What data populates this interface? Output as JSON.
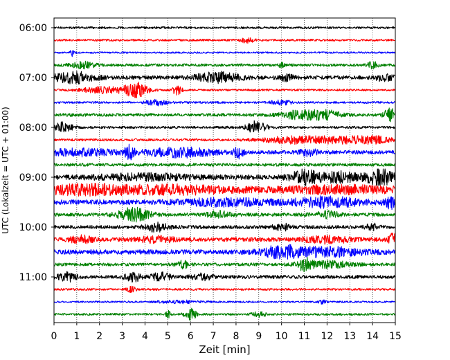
{
  "chart_data": {
    "type": "line",
    "title": "",
    "xlabel": "Zeit  [min]",
    "ylabel": "UTC (Lokalzeit = UTC + 01:00)",
    "xlim": [
      0,
      15
    ],
    "x_ticks": [
      0,
      1,
      2,
      3,
      4,
      5,
      6,
      7,
      8,
      9,
      10,
      11,
      12,
      13,
      14,
      15
    ],
    "x_tick_labels": [
      "0",
      "1",
      "2",
      "3",
      "4",
      "5",
      "6",
      "7",
      "8",
      "9",
      "10",
      "11",
      "12",
      "13",
      "14",
      "15"
    ],
    "y_tick_labels": [
      "06:00",
      "07:00",
      "08:00",
      "09:00",
      "10:00",
      "11:00"
    ],
    "y_tick_rows": [
      0,
      4,
      8,
      12,
      16,
      20
    ],
    "grid": {
      "x": "dotted",
      "y": "none"
    },
    "trace_colors": [
      "#000000",
      "#ff0000",
      "#0000ff",
      "#008000"
    ],
    "series": [
      {
        "start": "06:00",
        "color": "#000000",
        "amplitude": 0.12,
        "bursts": []
      },
      {
        "start": "06:15",
        "color": "#ff0000",
        "amplitude": 0.12,
        "bursts": [
          {
            "t": 8.5,
            "a": 0.3,
            "w": 0.3
          }
        ]
      },
      {
        "start": "06:30",
        "color": "#0000ff",
        "amplitude": 0.1,
        "bursts": [
          {
            "t": 0.8,
            "a": 0.5,
            "w": 0.1
          }
        ]
      },
      {
        "start": "06:45",
        "color": "#008000",
        "amplitude": 0.16,
        "bursts": [
          {
            "t": 1.3,
            "a": 0.35,
            "w": 0.5
          },
          {
            "t": 10.0,
            "a": 0.4,
            "w": 0.1
          },
          {
            "t": 14.0,
            "a": 0.4,
            "w": 0.2
          }
        ]
      },
      {
        "start": "07:00",
        "color": "#000000",
        "amplitude": 0.22,
        "bursts": [
          {
            "t": 0.9,
            "a": 0.6,
            "w": 0.9
          },
          {
            "t": 7.2,
            "a": 0.55,
            "w": 1.0
          },
          {
            "t": 10.2,
            "a": 0.35,
            "w": 0.3
          },
          {
            "t": 14.5,
            "a": 0.35,
            "w": 0.4
          }
        ]
      },
      {
        "start": "07:15",
        "color": "#ff0000",
        "amplitude": 0.12,
        "bursts": [
          {
            "t": 2.2,
            "a": 0.35,
            "w": 1.0
          },
          {
            "t": 3.6,
            "a": 0.9,
            "w": 0.5
          },
          {
            "t": 5.4,
            "a": 0.6,
            "w": 0.2
          }
        ]
      },
      {
        "start": "07:30",
        "color": "#0000ff",
        "amplitude": 0.12,
        "bursts": [
          {
            "t": 4.5,
            "a": 0.3,
            "w": 0.5
          },
          {
            "t": 10.0,
            "a": 0.25,
            "w": 0.5
          }
        ]
      },
      {
        "start": "07:45",
        "color": "#008000",
        "amplitude": 0.18,
        "bursts": [
          {
            "t": 10.8,
            "a": 0.5,
            "w": 0.8
          },
          {
            "t": 12.0,
            "a": 0.5,
            "w": 0.6
          },
          {
            "t": 14.8,
            "a": 0.7,
            "w": 0.3
          }
        ]
      },
      {
        "start": "08:00",
        "color": "#000000",
        "amplitude": 0.14,
        "bursts": [
          {
            "t": 0.4,
            "a": 0.55,
            "w": 0.4
          },
          {
            "t": 8.9,
            "a": 0.7,
            "w": 0.45
          }
        ]
      },
      {
        "start": "08:15",
        "color": "#ff0000",
        "amplitude": 0.14,
        "bursts": [
          {
            "t": 10.5,
            "a": 0.4,
            "w": 1.3
          },
          {
            "t": 12.5,
            "a": 0.35,
            "w": 1.0
          },
          {
            "t": 14.0,
            "a": 0.4,
            "w": 0.8
          }
        ]
      },
      {
        "start": "08:30",
        "color": "#0000ff",
        "amplitude": 0.22,
        "bursts": [
          {
            "t": 1.2,
            "a": 0.35,
            "w": 1.5
          },
          {
            "t": 3.3,
            "a": 0.7,
            "w": 0.2
          },
          {
            "t": 5.5,
            "a": 0.5,
            "w": 1.5
          },
          {
            "t": 8.1,
            "a": 0.7,
            "w": 0.2
          },
          {
            "t": 11.2,
            "a": 0.35,
            "w": 0.4
          }
        ]
      },
      {
        "start": "08:45",
        "color": "#008000",
        "amplitude": 0.18,
        "bursts": []
      },
      {
        "start": "09:00",
        "color": "#000000",
        "amplitude": 0.28,
        "bursts": [
          {
            "t": 4.0,
            "a": 0.3,
            "w": 2.0
          },
          {
            "t": 11.0,
            "a": 0.8,
            "w": 0.6
          },
          {
            "t": 12.5,
            "a": 0.55,
            "w": 0.8
          },
          {
            "t": 14.3,
            "a": 0.9,
            "w": 0.6
          }
        ]
      },
      {
        "start": "09:15",
        "color": "#ff0000",
        "amplitude": 0.4,
        "bursts": [
          {
            "t": 1.5,
            "a": 0.45,
            "w": 2.0
          },
          {
            "t": 5.5,
            "a": 0.3,
            "w": 2.0
          },
          {
            "t": 12.5,
            "a": 0.3,
            "w": 2.0
          }
        ]
      },
      {
        "start": "09:30",
        "color": "#0000ff",
        "amplitude": 0.28,
        "bursts": [
          {
            "t": 7.5,
            "a": 0.35,
            "w": 2.0
          },
          {
            "t": 12.0,
            "a": 0.5,
            "w": 1.5
          },
          {
            "t": 14.8,
            "a": 0.6,
            "w": 0.3
          }
        ]
      },
      {
        "start": "09:45",
        "color": "#008000",
        "amplitude": 0.2,
        "bursts": [
          {
            "t": 3.5,
            "a": 0.75,
            "w": 0.7
          },
          {
            "t": 7.2,
            "a": 0.35,
            "w": 0.5
          },
          {
            "t": 12.0,
            "a": 0.3,
            "w": 0.6
          }
        ]
      },
      {
        "start": "10:00",
        "color": "#000000",
        "amplitude": 0.2,
        "bursts": [
          {
            "t": 4.5,
            "a": 0.45,
            "w": 0.5
          },
          {
            "t": 10.0,
            "a": 0.35,
            "w": 0.4
          },
          {
            "t": 14.0,
            "a": 0.4,
            "w": 0.3
          }
        ]
      },
      {
        "start": "10:15",
        "color": "#ff0000",
        "amplitude": 0.24,
        "bursts": [
          {
            "t": 1.2,
            "a": 0.35,
            "w": 0.5
          },
          {
            "t": 4.5,
            "a": 0.3,
            "w": 0.8
          },
          {
            "t": 12.0,
            "a": 0.35,
            "w": 1.0
          },
          {
            "t": 14.9,
            "a": 0.6,
            "w": 0.2
          }
        ]
      },
      {
        "start": "10:30",
        "color": "#0000ff",
        "amplitude": 0.28,
        "bursts": [
          {
            "t": 10.0,
            "a": 0.65,
            "w": 0.8
          },
          {
            "t": 12.0,
            "a": 0.45,
            "w": 1.5
          }
        ]
      },
      {
        "start": "10:45",
        "color": "#008000",
        "amplitude": 0.18,
        "bursts": [
          {
            "t": 5.7,
            "a": 0.4,
            "w": 0.3
          },
          {
            "t": 11.0,
            "a": 0.7,
            "w": 0.3
          },
          {
            "t": 12.0,
            "a": 0.4,
            "w": 1.0
          }
        ]
      },
      {
        "start": "11:00",
        "color": "#000000",
        "amplitude": 0.2,
        "bursts": [
          {
            "t": 0.6,
            "a": 0.5,
            "w": 0.4
          },
          {
            "t": 3.5,
            "a": 0.45,
            "w": 0.4
          },
          {
            "t": 4.7,
            "a": 0.45,
            "w": 0.4
          },
          {
            "t": 6.5,
            "a": 0.3,
            "w": 0.5
          }
        ]
      },
      {
        "start": "11:15",
        "color": "#ff0000",
        "amplitude": 0.12,
        "bursts": [
          {
            "t": 3.4,
            "a": 0.3,
            "w": 0.2
          }
        ]
      },
      {
        "start": "11:30",
        "color": "#0000ff",
        "amplitude": 0.1,
        "bursts": [
          {
            "t": 5.5,
            "a": 0.15,
            "w": 1.0
          },
          {
            "t": 11.8,
            "a": 0.2,
            "w": 0.2
          }
        ]
      },
      {
        "start": "11:45",
        "color": "#008000",
        "amplitude": 0.12,
        "bursts": [
          {
            "t": 5.0,
            "a": 0.45,
            "w": 0.1
          },
          {
            "t": 6.0,
            "a": 0.65,
            "w": 0.25
          },
          {
            "t": 9.0,
            "a": 0.3,
            "w": 0.3
          }
        ]
      }
    ]
  }
}
